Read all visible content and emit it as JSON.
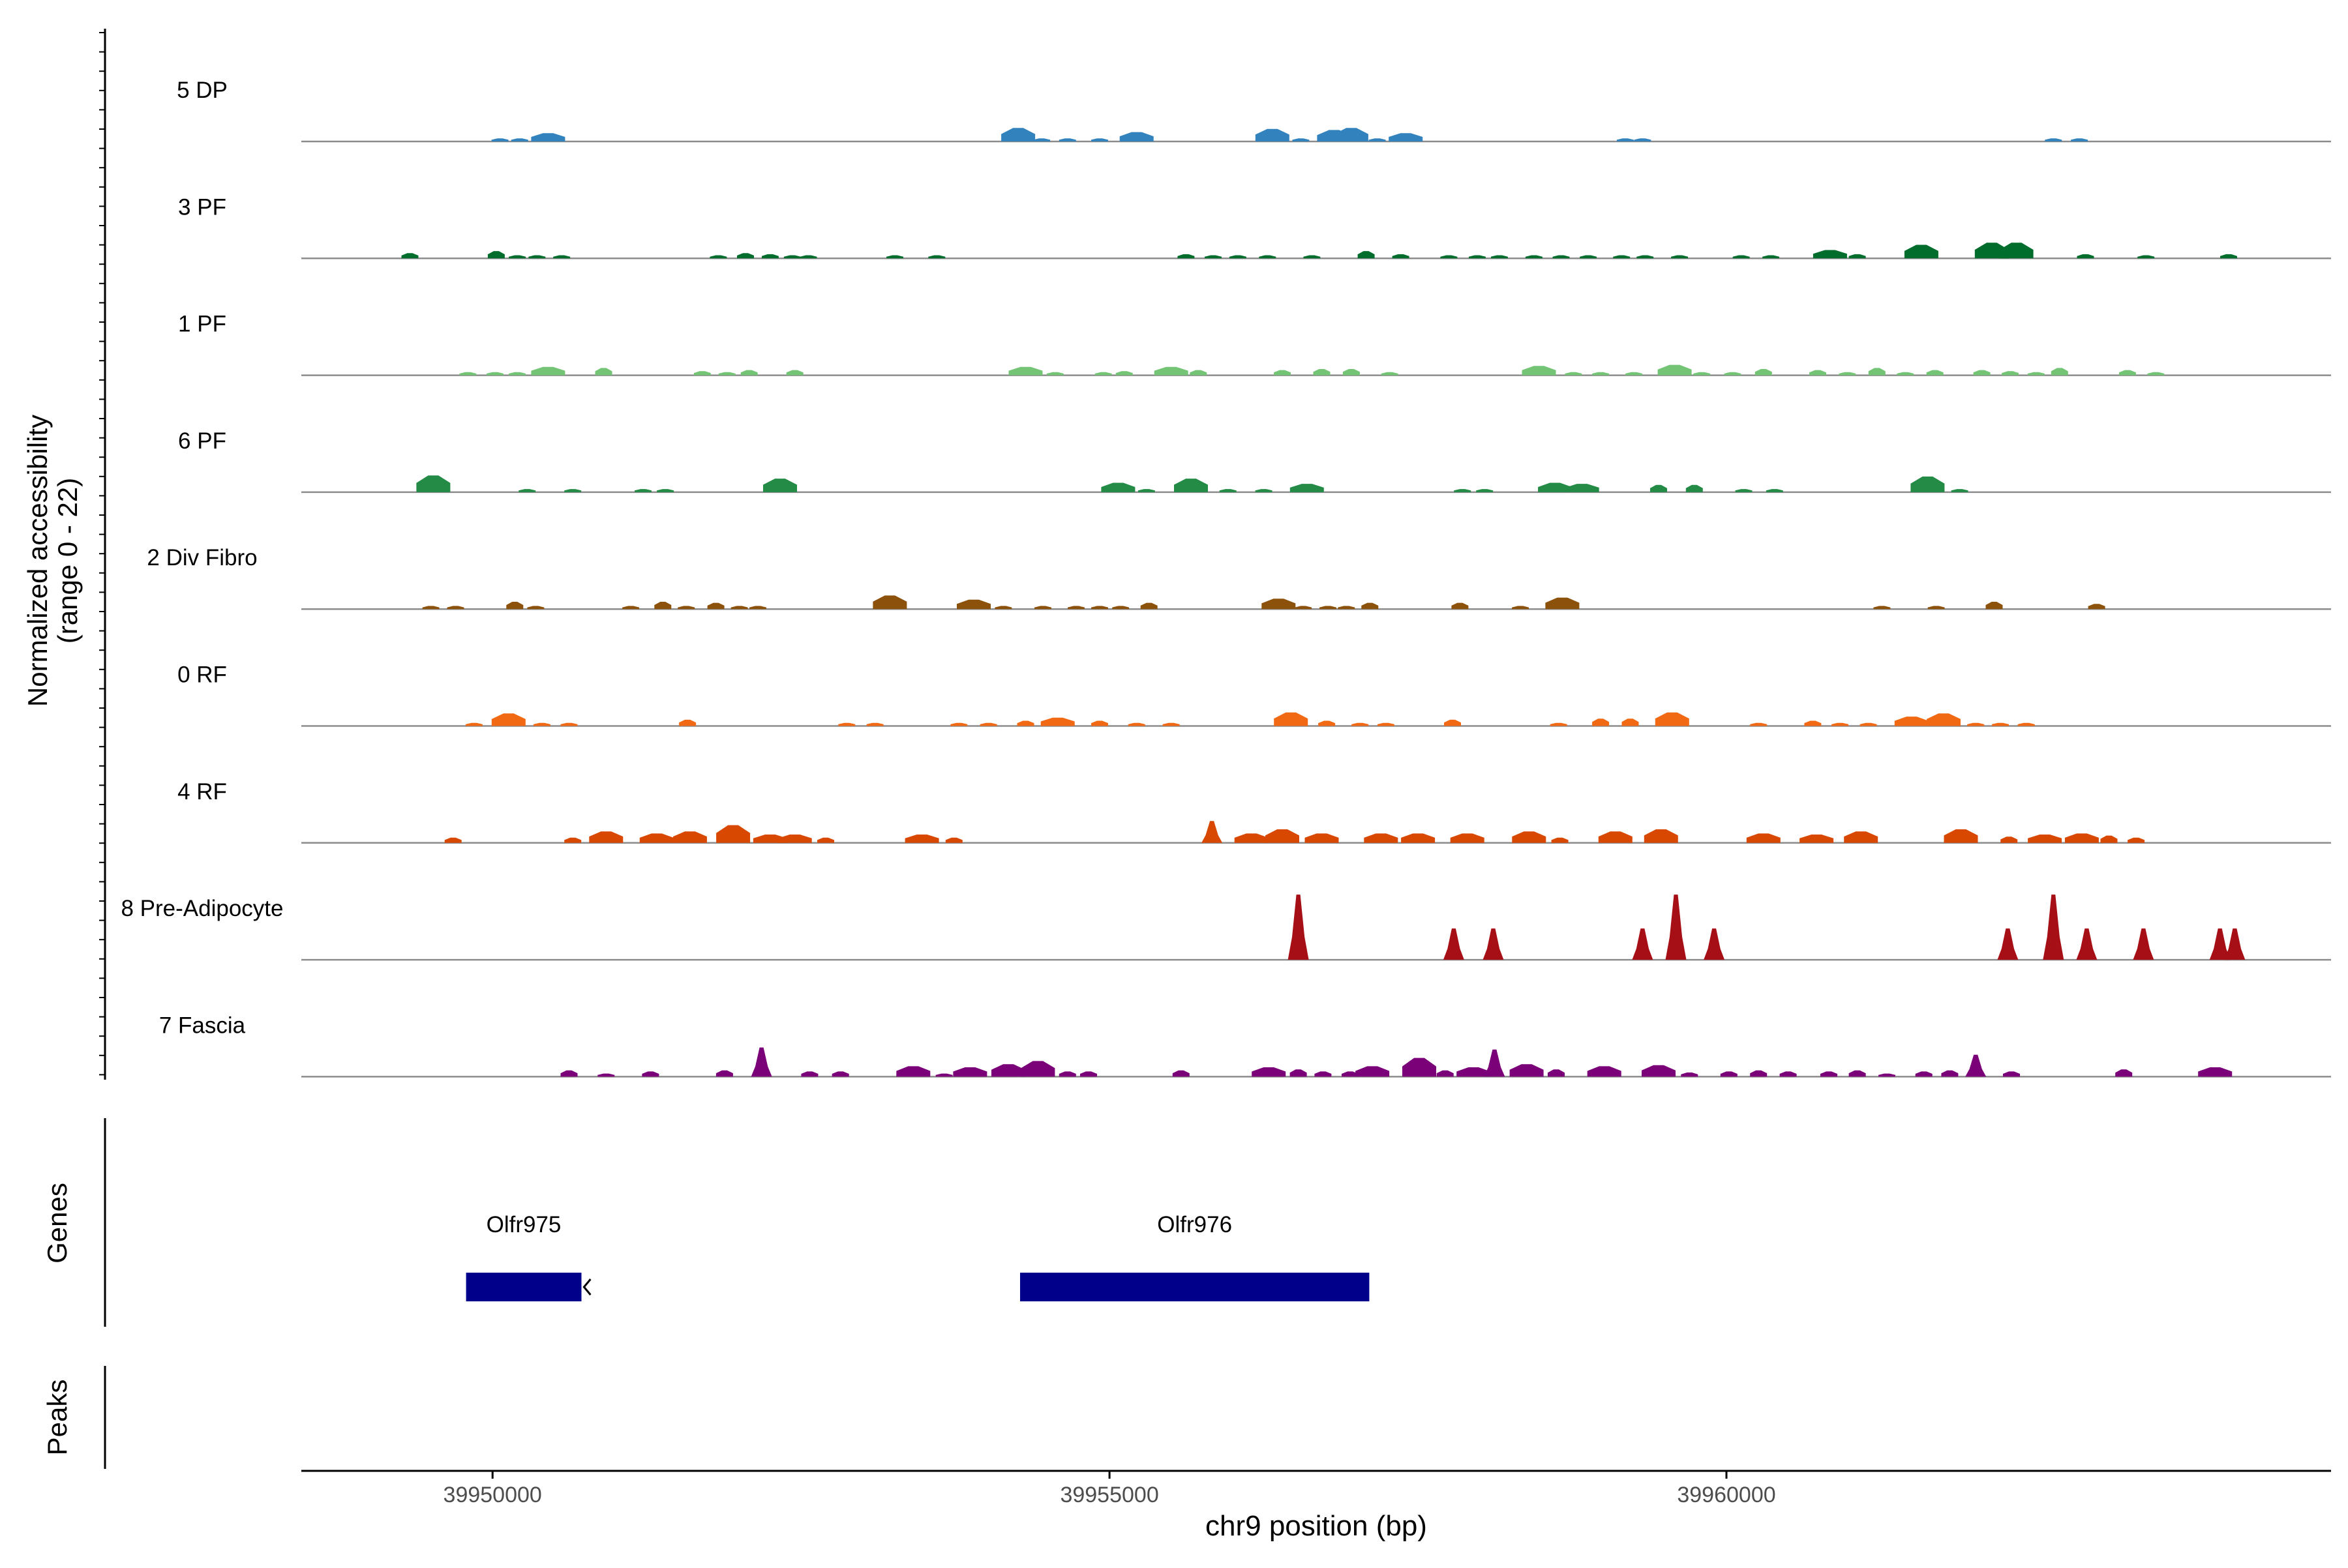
{
  "chart_data": {
    "type": "area",
    "title": "",
    "xlabel": "chr9 position (bp)",
    "ylabel": "Normalized accessibility",
    "ylabel_range": "(range 0 - 22)",
    "ylim": [
      0,
      22
    ],
    "xlim": [
      39948450,
      39964900
    ],
    "x_ticks": [
      39950000,
      39955000,
      39960000
    ],
    "x_tick_labels": [
      "39950000",
      "39955000",
      "39960000"
    ],
    "grid": false,
    "legend": "none",
    "tracks": [
      {
        "name": "5 DP",
        "color": "#3182BD",
        "peaks": [
          [
            39950060,
            0.6
          ],
          [
            39950220,
            0.6
          ],
          [
            39950450,
            1.6
          ],
          [
            39954260,
            2.6
          ],
          [
            39954450,
            0.6
          ],
          [
            39954660,
            0.6
          ],
          [
            39954920,
            0.6
          ],
          [
            39955220,
            1.8
          ],
          [
            39956320,
            2.4
          ],
          [
            39956550,
            0.6
          ],
          [
            39956820,
            2.2
          ],
          [
            39956960,
            2.6
          ],
          [
            39957170,
            0.6
          ],
          [
            39957400,
            1.6
          ],
          [
            39959180,
            0.6
          ],
          [
            39959320,
            0.6
          ],
          [
            39962650,
            0.6
          ],
          [
            39962860,
            0.6
          ]
        ]
      },
      {
        "name": "3 PF",
        "color": "#006D2C",
        "peaks": [
          [
            39949330,
            1.0
          ],
          [
            39950030,
            1.4
          ],
          [
            39950200,
            0.6
          ],
          [
            39950360,
            0.6
          ],
          [
            39950560,
            0.6
          ],
          [
            39951830,
            0.6
          ],
          [
            39952050,
            1.0
          ],
          [
            39952250,
            0.8
          ],
          [
            39952430,
            0.6
          ],
          [
            39952560,
            0.6
          ],
          [
            39953260,
            0.6
          ],
          [
            39953600,
            0.6
          ],
          [
            39955620,
            0.8
          ],
          [
            39955840,
            0.6
          ],
          [
            39956040,
            0.6
          ],
          [
            39956280,
            0.6
          ],
          [
            39956640,
            0.6
          ],
          [
            39957080,
            1.4
          ],
          [
            39957360,
            0.8
          ],
          [
            39957750,
            0.6
          ],
          [
            39957980,
            0.6
          ],
          [
            39958160,
            0.6
          ],
          [
            39958440,
            0.6
          ],
          [
            39958660,
            0.6
          ],
          [
            39958880,
            0.6
          ],
          [
            39959150,
            0.6
          ],
          [
            39959340,
            0.6
          ],
          [
            39959620,
            0.6
          ],
          [
            39960120,
            0.6
          ],
          [
            39960360,
            0.6
          ],
          [
            39960840,
            1.6
          ],
          [
            39961060,
            0.8
          ],
          [
            39961580,
            2.6
          ],
          [
            39962150,
            3.0
          ],
          [
            39962350,
            3.0
          ],
          [
            39962910,
            0.8
          ],
          [
            39963400,
            0.6
          ],
          [
            39964070,
            0.8
          ]
        ]
      },
      {
        "name": "1 PF",
        "color": "#74C476",
        "peaks": [
          [
            39949800,
            0.6
          ],
          [
            39950020,
            0.6
          ],
          [
            39950200,
            0.6
          ],
          [
            39950450,
            1.6
          ],
          [
            39950900,
            1.4
          ],
          [
            39951700,
            0.8
          ],
          [
            39951900,
            0.6
          ],
          [
            39952080,
            1.0
          ],
          [
            39952450,
            1.0
          ],
          [
            39954320,
            1.6
          ],
          [
            39954560,
            0.6
          ],
          [
            39954950,
            0.6
          ],
          [
            39955120,
            0.8
          ],
          [
            39955500,
            1.6
          ],
          [
            39955720,
            1.0
          ],
          [
            39956400,
            1.0
          ],
          [
            39956720,
            1.2
          ],
          [
            39956960,
            1.2
          ],
          [
            39957270,
            0.6
          ],
          [
            39958480,
            1.8
          ],
          [
            39958760,
            0.6
          ],
          [
            39958980,
            0.6
          ],
          [
            39959250,
            0.6
          ],
          [
            39959580,
            2.0
          ],
          [
            39959800,
            0.6
          ],
          [
            39960050,
            0.6
          ],
          [
            39960300,
            1.2
          ],
          [
            39960740,
            1.0
          ],
          [
            39960980,
            0.6
          ],
          [
            39961220,
            1.4
          ],
          [
            39961450,
            0.6
          ],
          [
            39961690,
            1.0
          ],
          [
            39962070,
            1.0
          ],
          [
            39962300,
            0.8
          ],
          [
            39962510,
            0.6
          ],
          [
            39962700,
            1.4
          ],
          [
            39963250,
            1.0
          ],
          [
            39963480,
            0.6
          ]
        ]
      },
      {
        "name": "6 PF",
        "color": "#238B45",
        "peaks": [
          [
            39949520,
            3.2
          ],
          [
            39950280,
            0.6
          ],
          [
            39950650,
            0.6
          ],
          [
            39951220,
            0.6
          ],
          [
            39951400,
            0.6
          ],
          [
            39952330,
            2.6
          ],
          [
            39955070,
            1.8
          ],
          [
            39955300,
            0.6
          ],
          [
            39955660,
            2.6
          ],
          [
            39955960,
            0.6
          ],
          [
            39956250,
            0.6
          ],
          [
            39956600,
            1.6
          ],
          [
            39957860,
            0.6
          ],
          [
            39958040,
            0.6
          ],
          [
            39958610,
            1.8
          ],
          [
            39958830,
            1.6
          ],
          [
            39959450,
            1.4
          ],
          [
            39959740,
            1.4
          ],
          [
            39960140,
            0.6
          ],
          [
            39960390,
            0.6
          ],
          [
            39961630,
            3.0
          ],
          [
            39961890,
            0.6
          ]
        ]
      },
      {
        "name": "2 Div Fibro",
        "color": "#8C510A",
        "peaks": [
          [
            39949500,
            0.6
          ],
          [
            39949700,
            0.6
          ],
          [
            39950180,
            1.4
          ],
          [
            39950350,
            0.6
          ],
          [
            39951120,
            0.6
          ],
          [
            39951380,
            1.4
          ],
          [
            39951570,
            0.6
          ],
          [
            39951810,
            1.2
          ],
          [
            39952000,
            0.6
          ],
          [
            39952150,
            0.6
          ],
          [
            39953220,
            2.6
          ],
          [
            39953900,
            1.8
          ],
          [
            39954140,
            0.6
          ],
          [
            39954460,
            0.6
          ],
          [
            39954730,
            0.6
          ],
          [
            39954920,
            0.6
          ],
          [
            39955090,
            0.6
          ],
          [
            39955320,
            1.2
          ],
          [
            39956370,
            2.0
          ],
          [
            39956570,
            0.6
          ],
          [
            39956770,
            0.6
          ],
          [
            39956920,
            0.6
          ],
          [
            39957110,
            1.2
          ],
          [
            39957840,
            1.2
          ],
          [
            39958330,
            0.6
          ],
          [
            39958670,
            2.2
          ],
          [
            39961260,
            0.6
          ],
          [
            39961700,
            0.6
          ],
          [
            39962170,
            1.4
          ],
          [
            39963000,
            1.0
          ]
        ]
      },
      {
        "name": "0 RF",
        "color": "#F16913",
        "peaks": [
          [
            39949850,
            0.6
          ],
          [
            39950130,
            2.4
          ],
          [
            39950400,
            0.6
          ],
          [
            39950620,
            0.6
          ],
          [
            39951580,
            1.2
          ],
          [
            39952870,
            0.6
          ],
          [
            39953100,
            0.6
          ],
          [
            39953780,
            0.6
          ],
          [
            39954020,
            0.6
          ],
          [
            39954320,
            1.0
          ],
          [
            39954580,
            1.6
          ],
          [
            39954920,
            1.0
          ],
          [
            39955220,
            0.6
          ],
          [
            39955500,
            0.6
          ],
          [
            39956470,
            2.6
          ],
          [
            39956760,
            1.0
          ],
          [
            39957030,
            0.6
          ],
          [
            39957240,
            0.6
          ],
          [
            39957780,
            1.2
          ],
          [
            39958640,
            0.6
          ],
          [
            39958980,
            1.4
          ],
          [
            39959220,
            1.4
          ],
          [
            39959560,
            2.6
          ],
          [
            39960260,
            0.6
          ],
          [
            39960700,
            1.0
          ],
          [
            39960920,
            0.6
          ],
          [
            39961150,
            0.6
          ],
          [
            39961500,
            1.8
          ],
          [
            39961760,
            2.4
          ],
          [
            39962020,
            0.6
          ],
          [
            39962220,
            0.6
          ],
          [
            39962430,
            0.6
          ]
        ]
      },
      {
        "name": "4 RF",
        "color": "#D94801",
        "peaks": [
          [
            39949680,
            1.0
          ],
          [
            39950650,
            1.0
          ],
          [
            39950920,
            2.2
          ],
          [
            39951330,
            1.8
          ],
          [
            39951600,
            2.2
          ],
          [
            39951950,
            3.4
          ],
          [
            39952250,
            1.6
          ],
          [
            39952450,
            1.6
          ],
          [
            39952700,
            1.0
          ],
          [
            39953480,
            1.6
          ],
          [
            39953740,
            1.0
          ],
          [
            39955830,
            4.2
          ],
          [
            39956150,
            1.8
          ],
          [
            39956400,
            2.6
          ],
          [
            39956720,
            1.8
          ],
          [
            39957200,
            1.8
          ],
          [
            39957500,
            1.8
          ],
          [
            39957900,
            1.8
          ],
          [
            39958400,
            2.2
          ],
          [
            39958650,
            1.0
          ],
          [
            39959100,
            2.2
          ],
          [
            39959470,
            2.6
          ],
          [
            39960300,
            1.8
          ],
          [
            39960730,
            1.6
          ],
          [
            39961090,
            2.2
          ],
          [
            39961900,
            2.6
          ],
          [
            39962290,
            1.2
          ],
          [
            39962580,
            1.6
          ],
          [
            39962880,
            1.8
          ],
          [
            39963100,
            1.4
          ],
          [
            39963320,
            1.0
          ]
        ]
      },
      {
        "name": "8 Pre-Adipocyte",
        "color": "#A50F15",
        "peaks": [
          [
            39956530,
            12.5
          ],
          [
            39957790,
            6.0
          ],
          [
            39958110,
            6.0
          ],
          [
            39959320,
            6.0
          ],
          [
            39959590,
            12.5
          ],
          [
            39959900,
            6.0
          ],
          [
            39962280,
            6.0
          ],
          [
            39962650,
            12.5
          ],
          [
            39962920,
            6.0
          ],
          [
            39963380,
            6.0
          ],
          [
            39964000,
            6.0
          ],
          [
            39964120,
            6.0
          ]
        ]
      },
      {
        "name": "7 Fascia",
        "color": "#7A0177",
        "peaks": [
          [
            39950620,
            1.2
          ],
          [
            39950920,
            0.6
          ],
          [
            39951280,
            1.0
          ],
          [
            39951880,
            1.2
          ],
          [
            39952180,
            5.6
          ],
          [
            39952570,
            1.0
          ],
          [
            39952820,
            1.0
          ],
          [
            39953410,
            2.0
          ],
          [
            39953660,
            0.6
          ],
          [
            39953870,
            1.8
          ],
          [
            39954180,
            2.4
          ],
          [
            39954420,
            3.0
          ],
          [
            39954660,
            1.0
          ],
          [
            39954830,
            1.0
          ],
          [
            39955580,
            1.2
          ],
          [
            39956290,
            1.8
          ],
          [
            39956530,
            1.4
          ],
          [
            39956730,
            1.0
          ],
          [
            39956950,
            1.0
          ],
          [
            39957130,
            2.0
          ],
          [
            39957510,
            3.6
          ],
          [
            39957720,
            1.2
          ],
          [
            39957950,
            1.8
          ],
          [
            39958120,
            5.2
          ],
          [
            39958380,
            2.4
          ],
          [
            39958620,
            1.4
          ],
          [
            39959010,
            2.0
          ],
          [
            39959450,
            2.2
          ],
          [
            39959700,
            0.8
          ],
          [
            39960020,
            1.0
          ],
          [
            39960260,
            1.2
          ],
          [
            39960500,
            1.0
          ],
          [
            39960830,
            1.0
          ],
          [
            39961060,
            1.2
          ],
          [
            39961300,
            0.6
          ],
          [
            39961600,
            1.0
          ],
          [
            39961810,
            1.2
          ],
          [
            39962020,
            4.2
          ],
          [
            39962310,
            1.0
          ],
          [
            39963220,
            1.4
          ],
          [
            39963960,
            1.8
          ]
        ]
      }
    ],
    "genes": {
      "label": "Genes",
      "color": "#00008B",
      "items": [
        {
          "name": "Olfr975",
          "start": 39949785,
          "end": 39950720,
          "strand": "-"
        },
        {
          "name": "Olfr976",
          "start": 39954275,
          "end": 39957105,
          "strand": "+"
        }
      ]
    },
    "peaks_track": {
      "label": "Peaks",
      "items": []
    }
  }
}
